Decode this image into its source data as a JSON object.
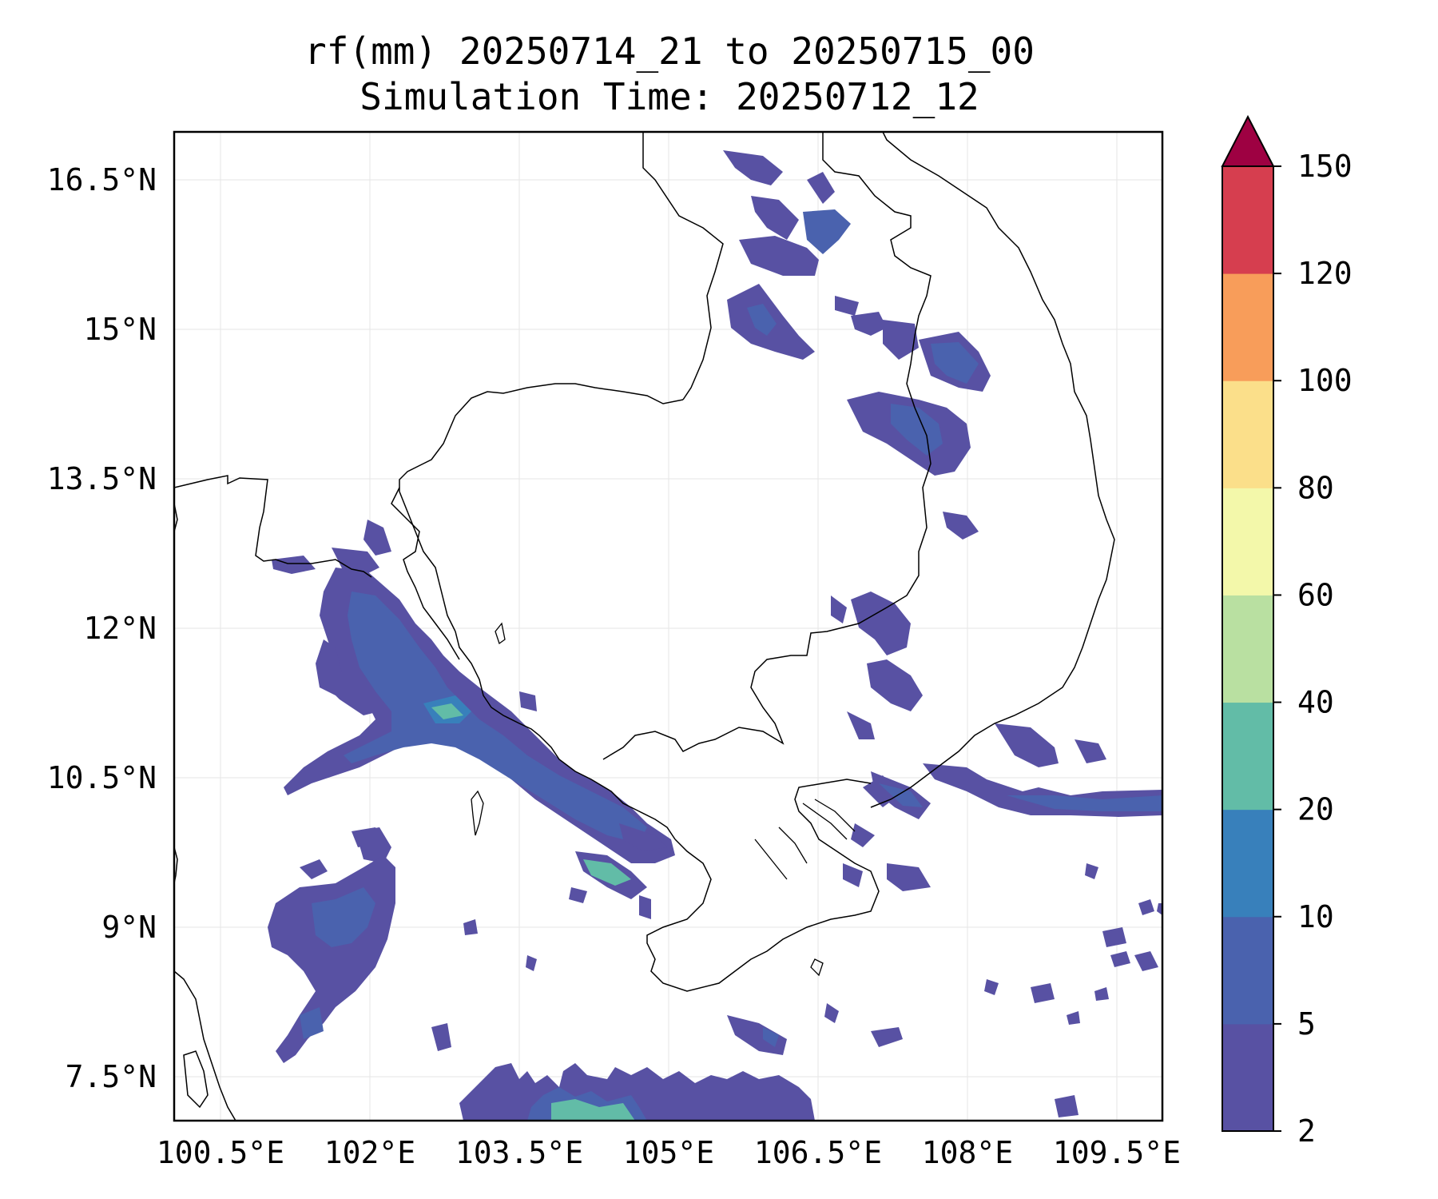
{
  "title": {
    "line1": "rf(mm) 20250714_21 to 20250715_00",
    "line2": "Simulation Time: 20250712_12"
  },
  "axes": {
    "x_ticks": [
      "100.5°E",
      "102°E",
      "103.5°E",
      "105°E",
      "106.5°E",
      "108°E",
      "109.5°E"
    ],
    "y_ticks": [
      "16.5°N",
      "15°N",
      "13.5°N",
      "12°N",
      "10.5°N",
      "9°N",
      "7.5°N"
    ],
    "grid": true
  },
  "colorbar": {
    "labels": [
      "2",
      "5",
      "10",
      "20",
      "40",
      "60",
      "80",
      "100",
      "120",
      "150"
    ],
    "colors": [
      "#5851a3",
      "#4a62ae",
      "#3880bb",
      "#62bca7",
      "#b9e0a1",
      "#f3f8aa",
      "#fbdf8a",
      "#f89d5a",
      "#d63e4f",
      "#9e0142"
    ],
    "extend": "max"
  },
  "map": {
    "border_color": "#000000",
    "gridline_color": "#e6e6e6"
  }
}
